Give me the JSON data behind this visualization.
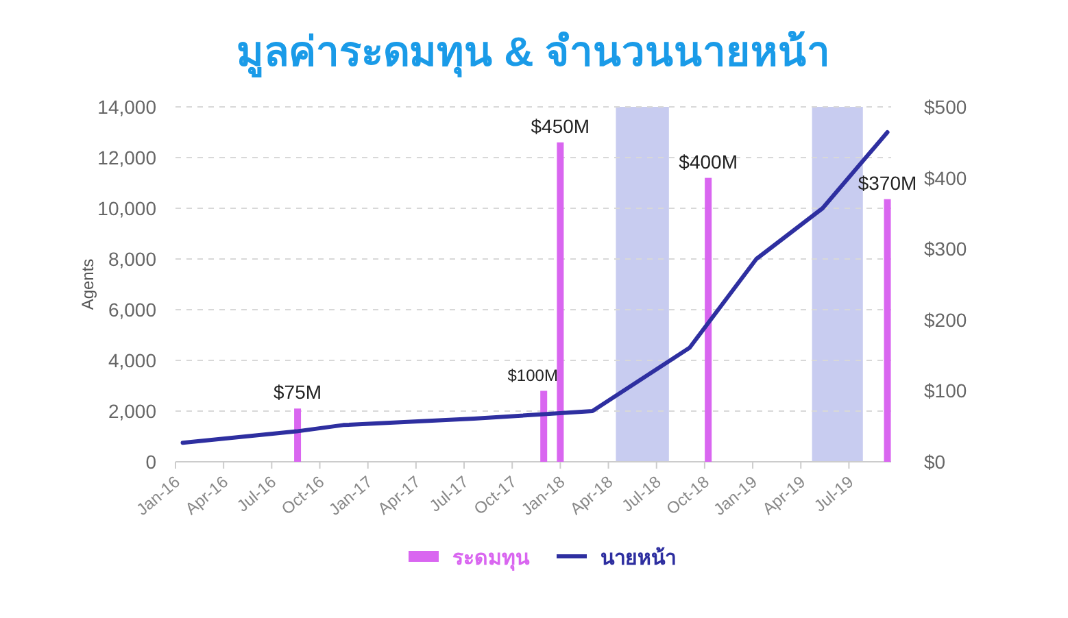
{
  "chart_data": {
    "type": "line",
    "title": "มูลค่าระดมทุน & จำนวนนายหน้า",
    "ylabel": "Agents",
    "xlim": [
      "2016-01-01",
      "2019-09-20"
    ],
    "xticks": [
      {
        "value": "2016-01-01",
        "label": "Jan-16"
      },
      {
        "value": "2016-04-01",
        "label": "Apr-16"
      },
      {
        "value": "2016-07-01",
        "label": "Jul-16"
      },
      {
        "value": "2016-10-01",
        "label": "Oct-16"
      },
      {
        "value": "2017-01-01",
        "label": "Jan-17"
      },
      {
        "value": "2017-04-01",
        "label": "Apr-17"
      },
      {
        "value": "2017-07-01",
        "label": "Jul-17"
      },
      {
        "value": "2017-10-01",
        "label": "Oct-17"
      },
      {
        "value": "2018-01-01",
        "label": "Jan-18"
      },
      {
        "value": "2018-04-01",
        "label": "Apr-18"
      },
      {
        "value": "2018-07-01",
        "label": "Jul-18"
      },
      {
        "value": "2018-10-01",
        "label": "Oct-18"
      },
      {
        "value": "2019-01-01",
        "label": "Jan-19"
      },
      {
        "value": "2019-04-01",
        "label": "Apr-19"
      },
      {
        "value": "2019-07-01",
        "label": "Jul-19"
      }
    ],
    "ylim": [
      0,
      14000
    ],
    "yticks": [
      0,
      {
        "value": 2000,
        "label": "2,000"
      },
      {
        "value": 4000,
        "label": "4,000"
      },
      {
        "value": 6000,
        "label": "6,000"
      },
      {
        "value": 8000,
        "label": "8,000"
      },
      {
        "value": 10000,
        "label": "10,000"
      },
      {
        "value": 12000,
        "label": "12,000"
      },
      {
        "value": 14000,
        "label": "14,000"
      }
    ],
    "y2lim": [
      0,
      500
    ],
    "y2ticks": [
      {
        "value": 0,
        "label": "$0"
      },
      {
        "value": 100,
        "label": "$100"
      },
      {
        "value": 200,
        "label": "$200"
      },
      {
        "value": 300,
        "label": "$300"
      },
      {
        "value": 400,
        "label": "$400"
      },
      {
        "value": 500,
        "label": "$500"
      }
    ],
    "grid": "y",
    "legend": "bottom",
    "bands": [
      {
        "axis": "x",
        "from": "2018-04-15",
        "to": "2018-07-25",
        "color": "#c8ccf0"
      },
      {
        "axis": "x",
        "from": "2019-04-22",
        "to": "2019-07-28",
        "color": "#c8ccf0"
      }
    ],
    "series": [
      {
        "name": "ระดมทุน",
        "type": "bar",
        "axis": "y2",
        "color": "#d966f0",
        "x": [
          "2016-08-20",
          "2017-11-30",
          "2018-01-01",
          "2018-10-08",
          "2019-09-13"
        ],
        "values": [
          75,
          100,
          450,
          400,
          370
        ],
        "value_labels": [
          "$75M",
          "$100M",
          "$450M",
          "$400M",
          "$370M"
        ]
      },
      {
        "name": "นายหน้า",
        "color": "#2e2fa0",
        "x": [
          "2016-01-15",
          "2016-08-18",
          "2016-11-15",
          "2017-07-20",
          "2018-03-01",
          "2018-09-03",
          "2019-01-08",
          "2019-05-12",
          "2019-09-13"
        ],
        "values": [
          750,
          1200,
          1450,
          1700,
          2000,
          4500,
          8000,
          10000,
          13000
        ]
      }
    ]
  }
}
